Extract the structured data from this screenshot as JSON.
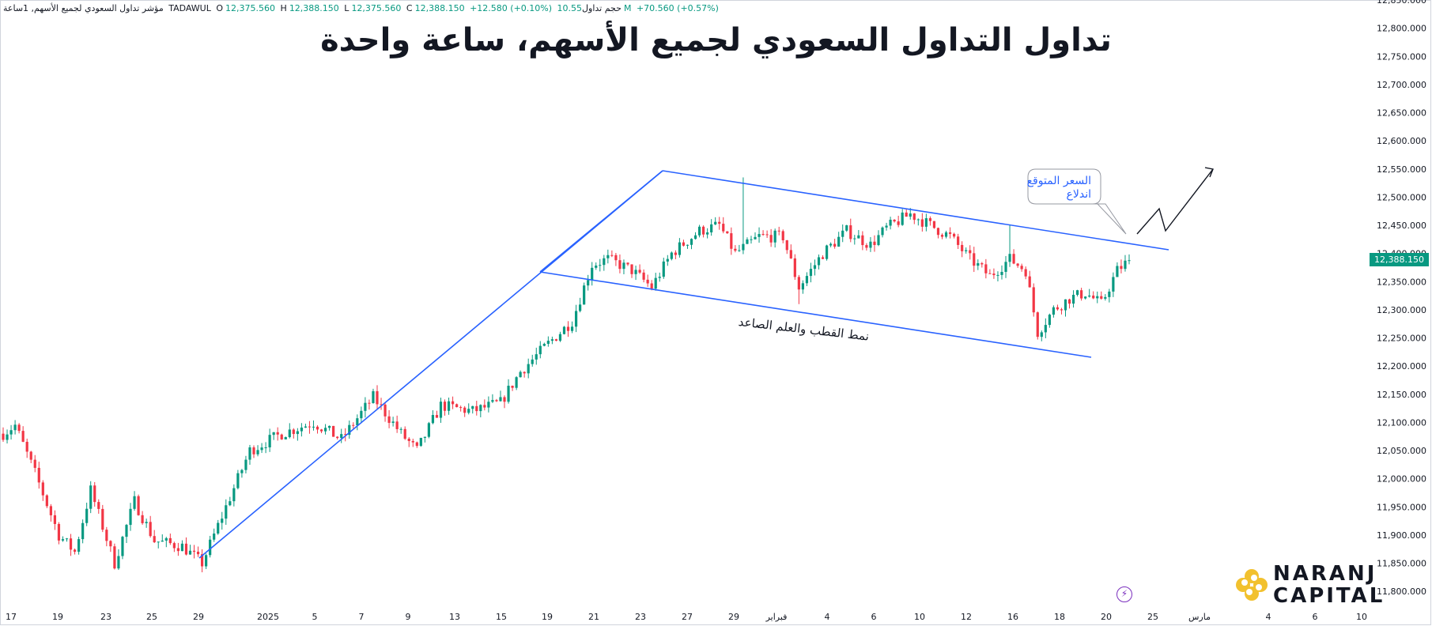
{
  "legend": {
    "symbol": "مؤشر تداول السعودي لجميع الأسهم, 1ساعة",
    "exchange": "TADAWUL",
    "o_label": "O",
    "o_value": "12,375.560",
    "h_label": "H",
    "h_value": "12,388.150",
    "l_label": "L",
    "l_value": "12,375.560",
    "c_label": "C",
    "c_value": "12,388.150",
    "change": "+12.580 (+0.10%)",
    "volume_label": "حجم تداول",
    "volume_value": "10.55M",
    "change2": "+70.560 (+0.57%)"
  },
  "title": "تداول التداول السعودي لجميع الأسهم، ساعة واحدة",
  "last_price_badge": "12,388.150",
  "callout_text": "السعر المتوقع اندلاع",
  "pattern_label": "نمط القطب والعلم الصاعد",
  "logo": {
    "line1": "NARANJ",
    "line2": "CAPITAL",
    "icon": "flower-logo-icon",
    "accent": "#f2c12e"
  },
  "bolt_icon": "lightning-icon",
  "colors": {
    "up": "#089981",
    "down": "#f23645",
    "trendline": "#2962ff",
    "badge": "#089981"
  },
  "chart_data": {
    "type": "candlestick",
    "title": "تداول التداول السعودي لجميع الأسهم، ساعة واحدة",
    "ylim": [
      11775,
      12850
    ],
    "y_ticks": [
      "12,850.000",
      "12,800.000",
      "12,750.000",
      "12,700.000",
      "12,650.000",
      "12,600.000",
      "12,550.000",
      "12,500.000",
      "12,450.000",
      "12,400.000",
      "12,350.000",
      "12,300.000",
      "12,250.000",
      "12,200.000",
      "12,150.000",
      "12,100.000",
      "12,050.000",
      "12,000.000",
      "11,950.000",
      "11,900.000",
      "11,850.000",
      "11,800.000"
    ],
    "x_ticks": [
      "17",
      "19",
      "23",
      "25",
      "29",
      "2025",
      "5",
      "7",
      "9",
      "13",
      "15",
      "19",
      "21",
      "23",
      "27",
      "29",
      "فبراير",
      "4",
      "6",
      "10",
      "12",
      "16",
      "18",
      "20",
      "25",
      "مارس",
      "4",
      "6",
      "10"
    ],
    "waypoints": [
      [
        0,
        12080
      ],
      [
        3,
        12095
      ],
      [
        8,
        12010
      ],
      [
        14,
        11900
      ],
      [
        18,
        11870
      ],
      [
        22,
        11980
      ],
      [
        28,
        11850
      ],
      [
        33,
        11960
      ],
      [
        38,
        11890
      ],
      [
        45,
        11880
      ],
      [
        50,
        11850
      ],
      [
        56,
        11950
      ],
      [
        62,
        12050
      ],
      [
        70,
        12080
      ],
      [
        78,
        12100
      ],
      [
        85,
        12070
      ],
      [
        93,
        12145
      ],
      [
        100,
        12080
      ],
      [
        104,
        12050
      ],
      [
        110,
        12130
      ],
      [
        118,
        12120
      ],
      [
        125,
        12135
      ],
      [
        130,
        12190
      ],
      [
        137,
        12240
      ],
      [
        143,
        12280
      ],
      [
        148,
        12380
      ],
      [
        152,
        12390
      ],
      [
        158,
        12370
      ],
      [
        163,
        12340
      ],
      [
        168,
        12400
      ],
      [
        175,
        12440
      ],
      [
        180,
        12450
      ],
      [
        184,
        12400
      ],
      [
        190,
        12430
      ],
      [
        196,
        12430
      ],
      [
        200,
        12340
      ],
      [
        206,
        12400
      ],
      [
        212,
        12440
      ],
      [
        218,
        12415
      ],
      [
        222,
        12445
      ],
      [
        228,
        12470
      ],
      [
        233,
        12450
      ],
      [
        238,
        12430
      ],
      [
        243,
        12390
      ],
      [
        248,
        12360
      ],
      [
        253,
        12390
      ],
      [
        257,
        12370
      ],
      [
        260,
        12260
      ],
      [
        264,
        12300
      ],
      [
        268,
        12320
      ],
      [
        272,
        12330
      ],
      [
        276,
        12310
      ],
      [
        280,
        12370
      ],
      [
        283,
        12388
      ]
    ],
    "n_candles": 284,
    "spikes": [
      {
        "index": 186,
        "high": 12535
      },
      {
        "index": 253,
        "high": 12450
      },
      {
        "index": 200,
        "low": 12310
      }
    ],
    "annotations": {
      "pole": {
        "start": [
          "29 Jan",
          11845
        ],
        "end": [
          "Feb 25 peak",
          12550
        ]
      },
      "flag_upper": {
        "start": [
          "Feb 25",
          12550
        ],
        "end": [
          "Mar",
          12405
        ]
      },
      "flag_lower": {
        "start": [
          "Feb 19",
          12365
        ],
        "end": [
          "Mar",
          12210
        ]
      },
      "projection": "zigzag up breakout"
    }
  }
}
